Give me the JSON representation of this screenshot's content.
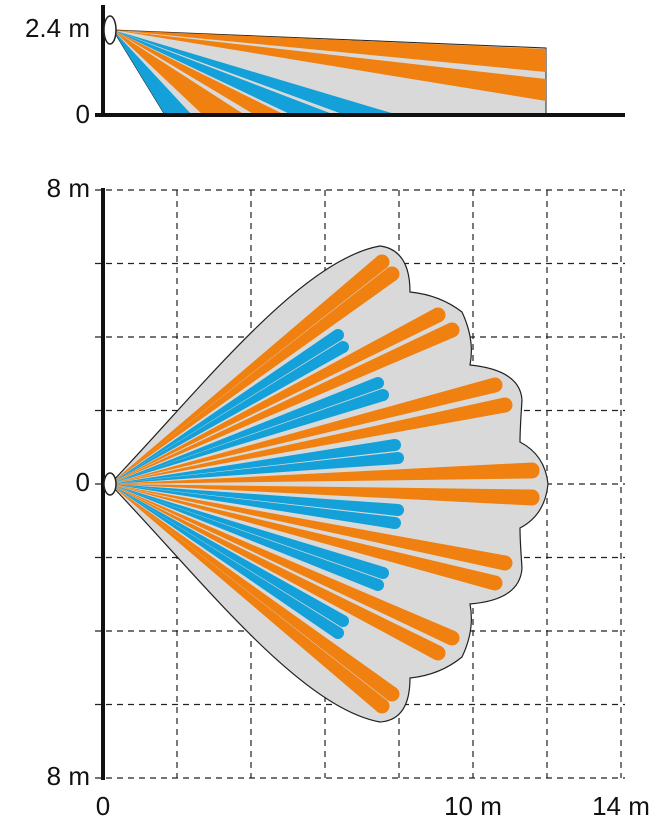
{
  "side_view": {
    "y_top_label": "2.4 m",
    "y_zero_label": "0"
  },
  "top_view": {
    "y_top_label": "8 m",
    "y_zero_label": "0",
    "y_bottom_label": "8 m",
    "x_labels": [
      "0",
      "10 m",
      "14 m"
    ]
  }
}
